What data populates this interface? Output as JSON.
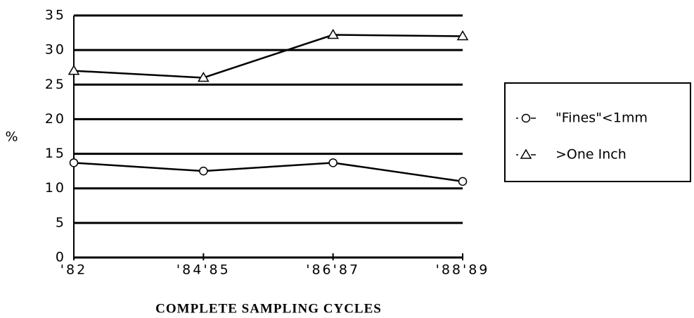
{
  "chart_data": {
    "type": "line",
    "categories": [
      "'82",
      "'84'85",
      "'86'87",
      "'88'89"
    ],
    "series": [
      {
        "name": "\"Fines\"<1mm",
        "color": "#000000",
        "marker": "circle",
        "values": [
          13.7,
          12.5,
          13.7,
          11
        ]
      },
      {
        "name": ">One Inch",
        "color": "#000000",
        "marker": "triangle",
        "values": [
          27,
          26,
          32.2,
          32
        ]
      }
    ],
    "y_label": "%",
    "x_label": "COMPLETE SAMPLING CYCLES",
    "ylim": [
      0,
      35
    ],
    "yticks": [
      0,
      5,
      10,
      15,
      20,
      25,
      30,
      35
    ],
    "grid": true,
    "legend": "right"
  }
}
